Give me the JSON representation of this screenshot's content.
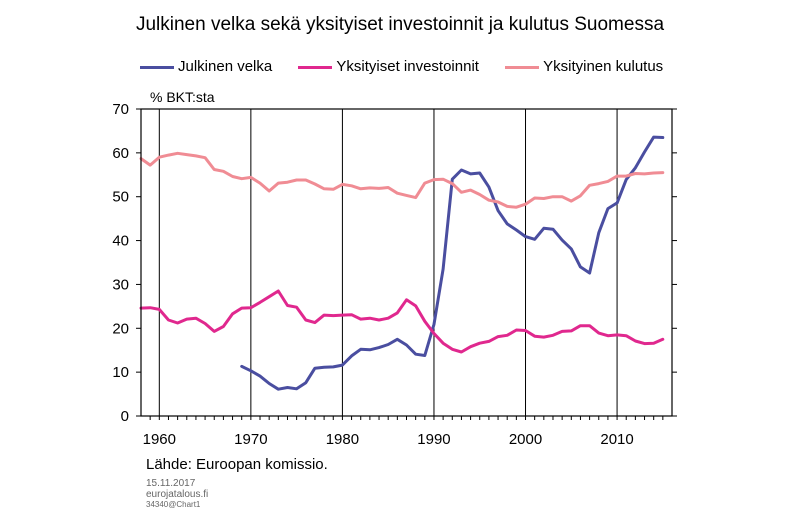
{
  "chart_data": {
    "type": "line",
    "title": "Julkinen velka sekä yksityiset investoinnit ja kulutus Suomessa",
    "ylabel": "% BKT:sta",
    "xlabel": "",
    "xlim": [
      1958,
      2016
    ],
    "ylim": [
      0,
      70
    ],
    "xticks": [
      1960,
      1970,
      1980,
      1990,
      2000,
      2010
    ],
    "yticks": [
      0,
      10,
      20,
      30,
      40,
      50,
      60,
      70
    ],
    "grid": "vertical",
    "legend": "top",
    "series": [
      {
        "name": "Julkinen velka",
        "color": "#4a4ea0",
        "x": [
          1969,
          1970,
          1971,
          1972,
          1973,
          1974,
          1975,
          1976,
          1977,
          1978,
          1979,
          1980,
          1981,
          1982,
          1983,
          1984,
          1985,
          1986,
          1987,
          1988,
          1989,
          1990,
          1991,
          1992,
          1993,
          1994,
          1995,
          1996,
          1997,
          1998,
          1999,
          2000,
          2001,
          2002,
          2003,
          2004,
          2005,
          2006,
          2007,
          2008,
          2009,
          2010,
          2011,
          2012,
          2013,
          2014,
          2015
        ],
        "values": [
          11.3,
          10.3,
          9.1,
          7.4,
          6.1,
          6.5,
          6.2,
          7.6,
          10.9,
          11.1,
          11.2,
          11.6,
          13.7,
          15.2,
          15.1,
          15.6,
          16.3,
          17.5,
          16.2,
          14.1,
          13.8,
          20.9,
          33.5,
          54.0,
          56.1,
          55.2,
          55.4,
          52.2,
          46.8,
          43.8,
          42.4,
          40.9,
          40.3,
          42.8,
          42.6,
          40.1,
          38.1,
          34.0,
          32.6,
          41.8,
          47.3,
          48.6,
          53.9,
          56.6,
          60.2,
          63.6,
          63.5
        ]
      },
      {
        "name": "Yksityiset investoinnit",
        "color": "#e0288e",
        "x": [
          1958,
          1959,
          1960,
          1961,
          1962,
          1963,
          1964,
          1965,
          1966,
          1967,
          1968,
          1969,
          1970,
          1971,
          1972,
          1973,
          1974,
          1975,
          1976,
          1977,
          1978,
          1979,
          1980,
          1981,
          1982,
          1983,
          1984,
          1985,
          1986,
          1987,
          1988,
          1989,
          1990,
          1991,
          1992,
          1993,
          1994,
          1995,
          1996,
          1997,
          1998,
          1999,
          2000,
          2001,
          2002,
          2003,
          2004,
          2005,
          2006,
          2007,
          2008,
          2009,
          2010,
          2011,
          2012,
          2013,
          2014,
          2015
        ],
        "values": [
          24.6,
          24.7,
          24.3,
          21.9,
          21.2,
          22.1,
          22.3,
          21.1,
          19.3,
          20.4,
          23.3,
          24.6,
          24.7,
          25.9,
          27.2,
          28.5,
          25.2,
          24.8,
          21.9,
          21.3,
          23.0,
          22.9,
          23.0,
          23.1,
          22.1,
          22.3,
          21.9,
          22.3,
          23.5,
          26.5,
          25.1,
          21.6,
          18.8,
          16.6,
          15.2,
          14.6,
          15.8,
          16.6,
          17.0,
          18.1,
          18.4,
          19.6,
          19.5,
          18.2,
          18.0,
          18.4,
          19.3,
          19.4,
          20.6,
          20.6,
          18.9,
          18.3,
          18.5,
          18.3,
          17.1,
          16.5,
          16.6,
          17.5
        ]
      },
      {
        "name": "Yksityinen kulutus",
        "color": "#f08c94",
        "x": [
          1958,
          1959,
          1960,
          1961,
          1962,
          1963,
          1964,
          1965,
          1966,
          1967,
          1968,
          1969,
          1970,
          1971,
          1972,
          1973,
          1974,
          1975,
          1976,
          1977,
          1978,
          1979,
          1980,
          1981,
          1982,
          1983,
          1984,
          1985,
          1986,
          1987,
          1988,
          1989,
          1990,
          1991,
          1992,
          1993,
          1994,
          1995,
          1996,
          1997,
          1998,
          1999,
          2000,
          2001,
          2002,
          2003,
          2004,
          2005,
          2006,
          2007,
          2008,
          2009,
          2010,
          2011,
          2012,
          2013,
          2014,
          2015
        ],
        "values": [
          58.7,
          57.2,
          59.0,
          59.5,
          59.9,
          59.6,
          59.3,
          58.9,
          56.2,
          55.8,
          54.6,
          54.1,
          54.4,
          53.1,
          51.3,
          53.1,
          53.3,
          53.8,
          53.8,
          52.9,
          51.8,
          51.7,
          52.8,
          52.5,
          51.8,
          52.0,
          51.9,
          52.1,
          50.8,
          50.3,
          49.8,
          53.1,
          53.9,
          54.0,
          53.0,
          51.0,
          51.5,
          50.5,
          49.2,
          48.8,
          47.8,
          47.6,
          48.3,
          49.7,
          49.6,
          50.0,
          50.0,
          49.0,
          50.2,
          52.6,
          53.0,
          53.5,
          54.7,
          54.7,
          55.3,
          55.2,
          55.4,
          55.5
        ]
      }
    ]
  },
  "source": "Lähde: Euroopan komissio.",
  "footer": {
    "date": "15.11.2017",
    "site": "eurojatalous.fi",
    "code": "34340@Chart1"
  }
}
